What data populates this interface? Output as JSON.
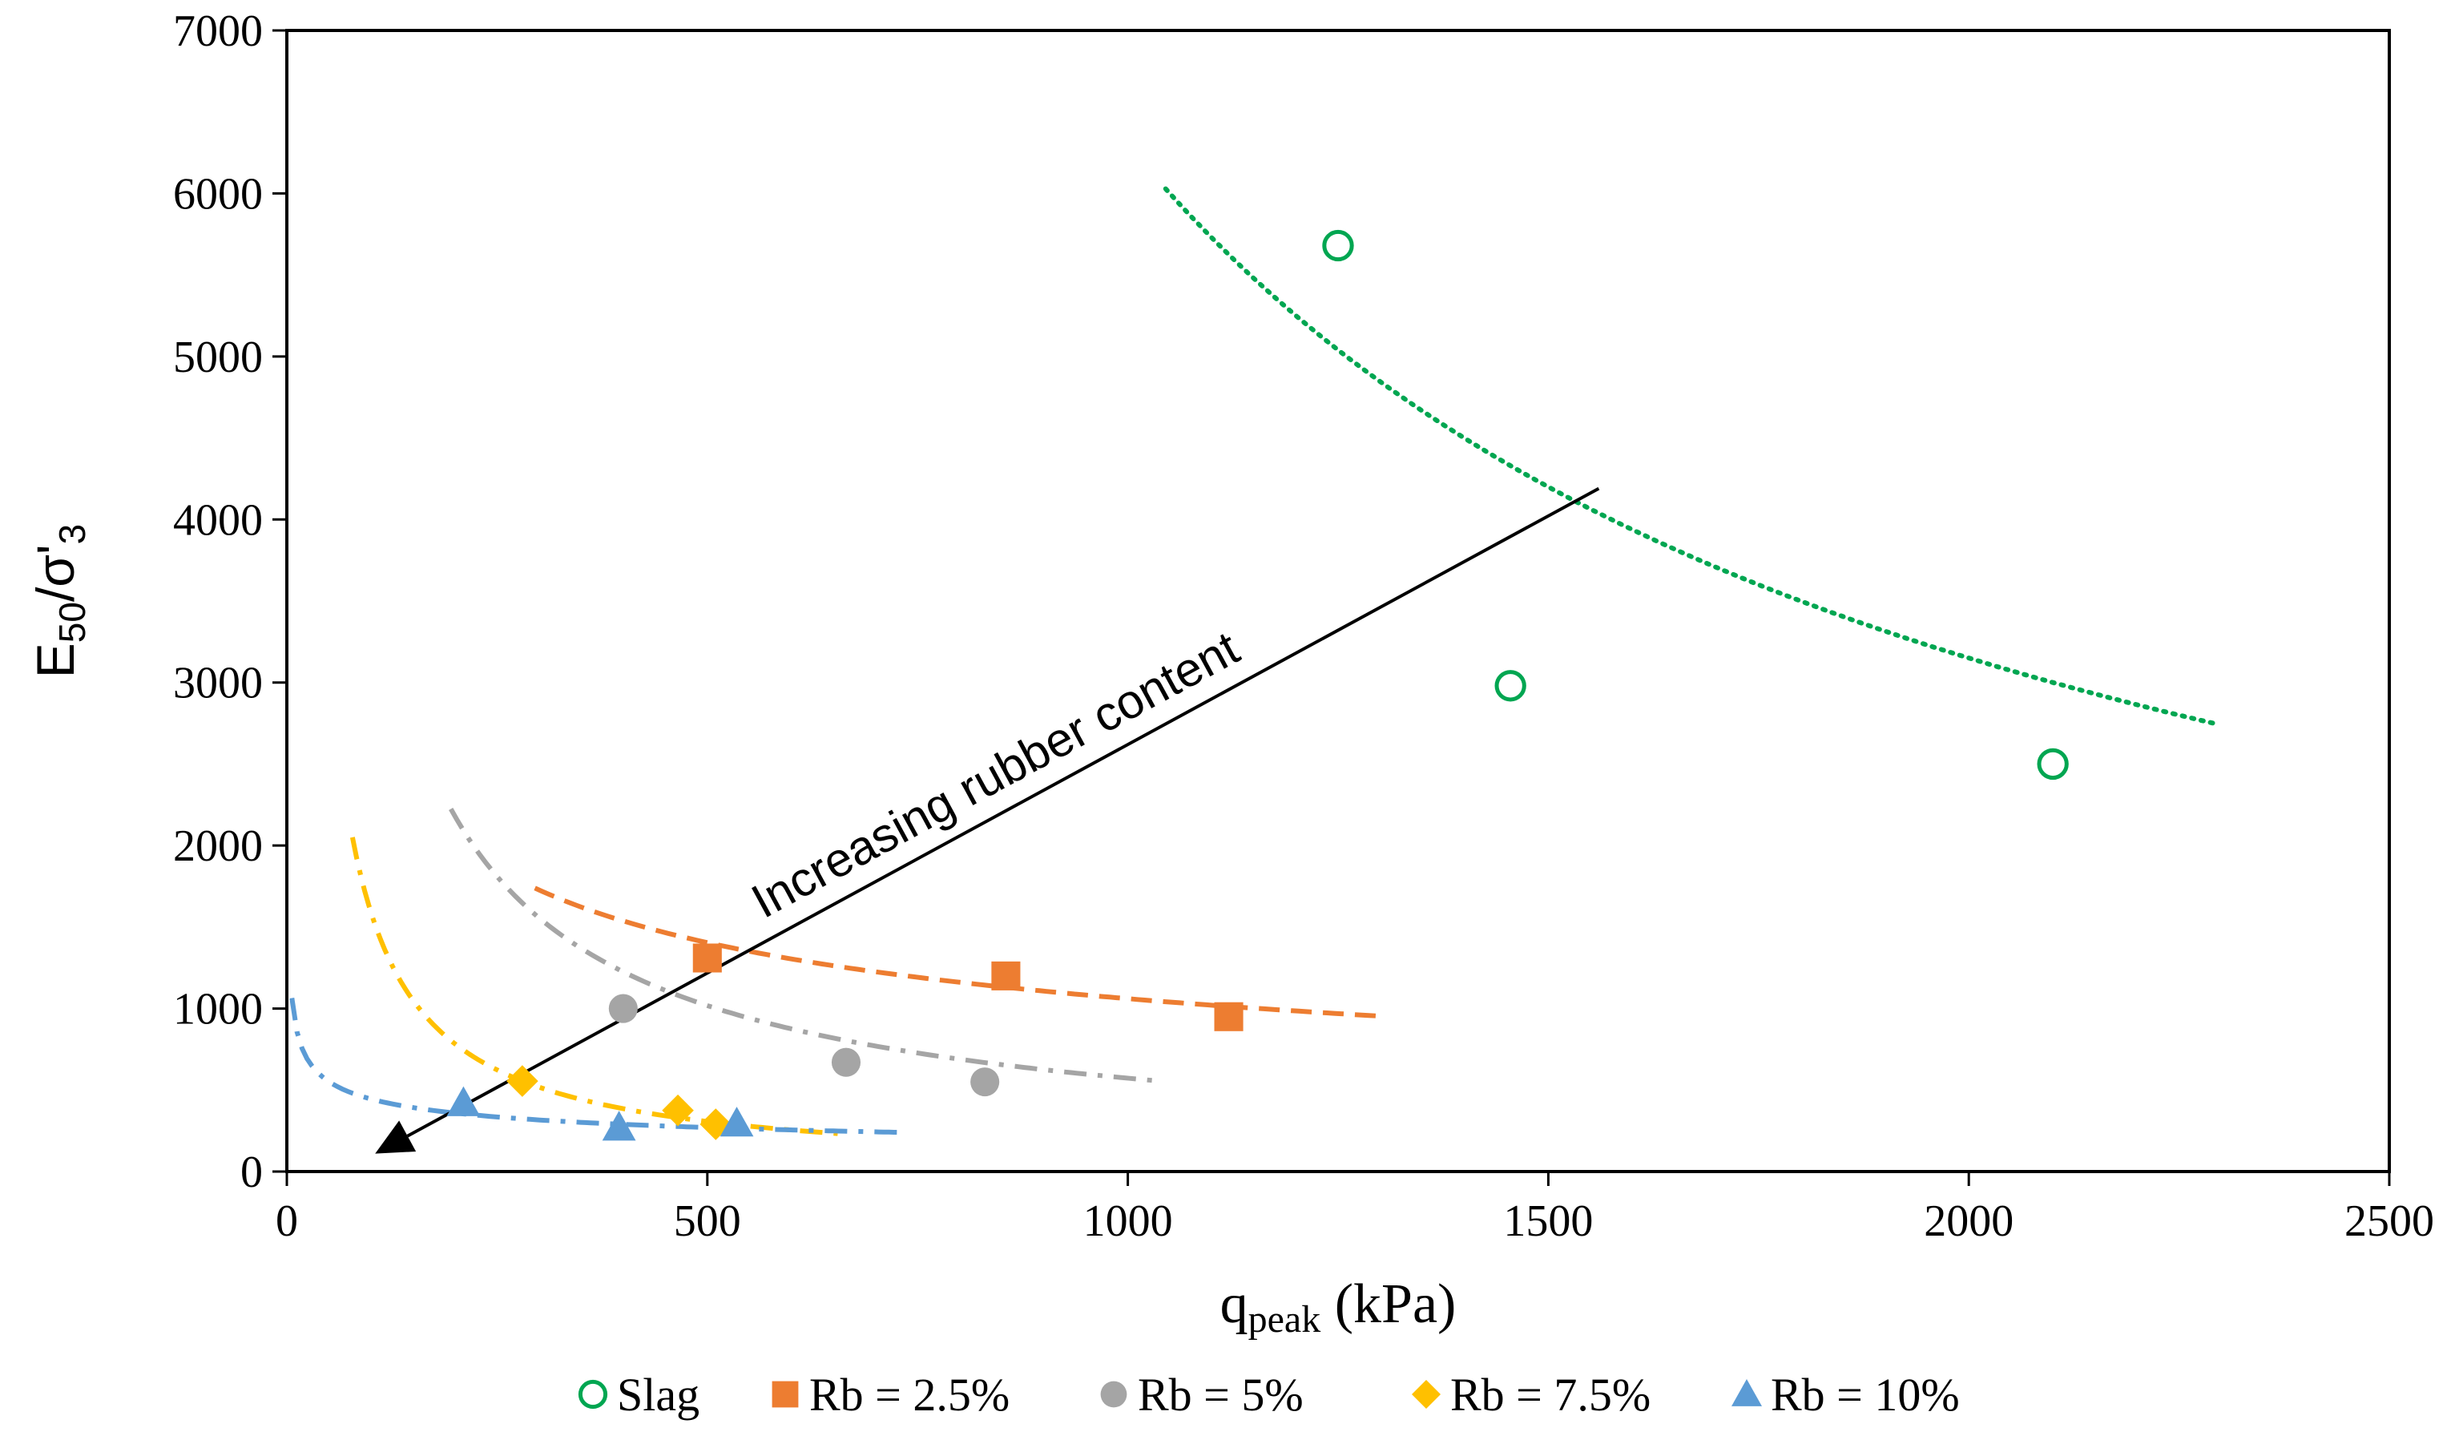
{
  "chart_data": {
    "type": "scatter",
    "xlabel_main": "q",
    "xlabel_sub": "peak",
    "xlabel_unit": " (kPa)",
    "ylabel_main": "E",
    "ylabel_sub1": "50",
    "ylabel_mid": "/σ'",
    "ylabel_sub2": "3",
    "xlim": [
      0,
      2500
    ],
    "ylim": [
      0,
      7000
    ],
    "x_ticks": [
      0,
      500,
      1000,
      1500,
      2000,
      2500
    ],
    "y_ticks": [
      0,
      1000,
      2000,
      3000,
      4000,
      5000,
      6000,
      7000
    ],
    "x_tick_labels": [
      "0",
      "500",
      "1000",
      "1500",
      "2000",
      "2500"
    ],
    "y_tick_labels": [
      "0",
      "1000",
      "2000",
      "3000",
      "4000",
      "5000",
      "6000",
      "7000"
    ],
    "grid": false,
    "legend_position": "bottom",
    "series": [
      {
        "name": "Slag",
        "marker": "circle-open",
        "color": "#00A651",
        "points": [
          [
            1250,
            5680
          ],
          [
            1455,
            2980
          ],
          [
            2100,
            2500
          ]
        ],
        "trend": {
          "style": "dotted",
          "a": 6300000,
          "b": -1.0,
          "x_range": [
            1045,
            2290
          ]
        }
      },
      {
        "name": "Rb = 2.5%",
        "marker": "square",
        "color": "#ED7D31",
        "points": [
          [
            500,
            1310
          ],
          [
            855,
            1200
          ],
          [
            1120,
            950
          ]
        ],
        "trend": {
          "style": "dashed",
          "a": 17400,
          "b": -0.405,
          "x_range": [
            295,
            1295
          ]
        }
      },
      {
        "name": "Rb = 5%",
        "marker": "circle",
        "color": "#A5A5A5",
        "points": [
          [
            400,
            1000
          ],
          [
            665,
            670
          ],
          [
            830,
            550
          ]
        ],
        "trend": {
          "style": "dashdot",
          "a": 177000,
          "b": -0.83,
          "x_range": [
            195,
            1030
          ]
        }
      },
      {
        "name": "Rb = 7.5%",
        "marker": "diamond",
        "color": "#FFC000",
        "points": [
          [
            280,
            555
          ],
          [
            465,
            375
          ],
          [
            510,
            290
          ]
        ],
        "trend": {
          "style": "dashdot",
          "a": 176000,
          "b": -1.022,
          "x_range": [
            78,
            655
          ]
        }
      },
      {
        "name": "Rb = 10%",
        "marker": "triangle",
        "color": "#5B9BD5",
        "points": [
          [
            210,
            420
          ],
          [
            395,
            270
          ],
          [
            535,
            295
          ]
        ],
        "trend": {
          "style": "dashdot",
          "a": 1855,
          "b": -0.31,
          "x_range": [
            6,
            728
          ]
        }
      }
    ],
    "annotations": [
      {
        "text": "Increasing rubber content",
        "arrow_from": [
          1560,
          4190
        ],
        "arrow_to": [
          105,
          110
        ]
      }
    ]
  }
}
